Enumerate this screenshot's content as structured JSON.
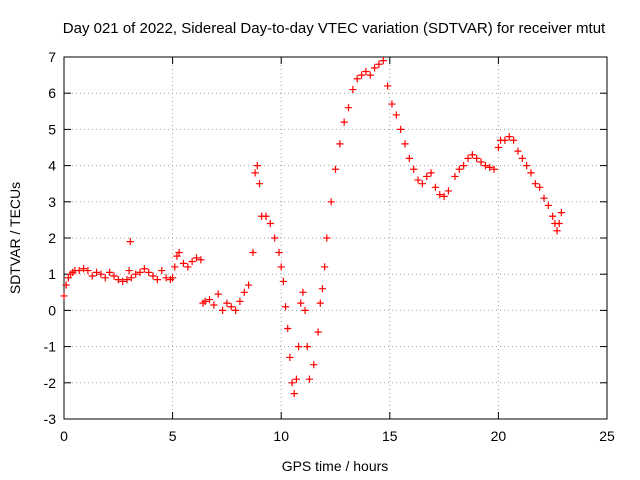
{
  "chart_data": {
    "type": "scatter",
    "title": "Day 021 of 2022, Sidereal Day-to-day VTEC variation (SDTVAR) for receiver mtut",
    "xlabel": "GPS time / hours",
    "ylabel": "SDTVAR / TECUs",
    "xlim": [
      0,
      25
    ],
    "ylim": [
      -3,
      7
    ],
    "xticks": [
      0,
      5,
      10,
      15,
      20,
      25
    ],
    "yticks": [
      -3,
      -2,
      -1,
      0,
      1,
      2,
      3,
      4,
      5,
      6,
      7
    ],
    "xtick_labels": [
      "0",
      "5",
      "10",
      "15",
      "20",
      "25"
    ],
    "ytick_labels": [
      "-3",
      "-2",
      "-1",
      "0",
      "1",
      "2",
      "3",
      "4",
      "5",
      "6",
      "7"
    ],
    "grid": true,
    "marker": "plus",
    "color": "#ff0000",
    "series": [
      {
        "name": "mtut",
        "x": [
          0.0,
          0.1,
          0.2,
          0.3,
          0.4,
          0.5,
          0.7,
          0.9,
          1.1,
          1.3,
          1.5,
          1.7,
          1.9,
          2.1,
          2.3,
          2.5,
          2.7,
          2.9,
          3.0,
          3.05,
          3.1,
          3.3,
          3.5,
          3.7,
          3.9,
          4.1,
          4.3,
          4.5,
          4.7,
          4.9,
          5.0,
          5.1,
          5.2,
          5.3,
          5.5,
          5.7,
          5.9,
          6.1,
          6.3,
          6.4,
          6.5,
          6.7,
          6.9,
          7.1,
          7.3,
          7.5,
          7.7,
          7.9,
          8.1,
          8.3,
          8.5,
          8.7,
          8.8,
          8.9,
          9.0,
          9.1,
          9.3,
          9.5,
          9.7,
          9.9,
          10.0,
          10.1,
          10.2,
          10.3,
          10.4,
          10.5,
          10.6,
          10.7,
          10.8,
          10.9,
          11.0,
          11.1,
          11.2,
          11.3,
          11.5,
          11.7,
          11.8,
          11.9,
          12.0,
          12.1,
          12.3,
          12.5,
          12.7,
          12.9,
          13.1,
          13.3,
          13.5,
          13.7,
          13.9,
          14.1,
          14.3,
          14.5,
          14.7,
          14.9,
          15.1,
          15.3,
          15.5,
          15.7,
          15.9,
          16.1,
          16.3,
          16.5,
          16.7,
          16.9,
          17.1,
          17.3,
          17.5,
          17.7,
          18.0,
          18.2,
          18.4,
          18.6,
          18.8,
          19.0,
          19.2,
          19.4,
          19.6,
          19.8,
          20.0,
          20.1,
          20.3,
          20.5,
          20.7,
          20.9,
          21.1,
          21.3,
          21.5,
          21.7,
          21.9,
          22.1,
          22.3,
          22.5,
          22.6,
          22.7,
          22.8,
          22.9
        ],
        "y": [
          0.4,
          0.7,
          0.9,
          1.0,
          1.05,
          1.1,
          1.1,
          1.15,
          1.1,
          0.95,
          1.05,
          1.0,
          0.9,
          1.05,
          0.95,
          0.85,
          0.8,
          0.85,
          1.1,
          1.9,
          0.9,
          1.0,
          1.05,
          1.15,
          1.05,
          0.95,
          0.85,
          1.1,
          0.9,
          0.85,
          0.9,
          1.2,
          1.5,
          1.6,
          1.3,
          1.2,
          1.35,
          1.45,
          1.4,
          0.2,
          0.25,
          0.3,
          0.15,
          0.45,
          0.0,
          0.2,
          0.1,
          0.0,
          0.25,
          0.5,
          0.7,
          1.6,
          3.8,
          4.0,
          3.5,
          2.6,
          2.6,
          2.4,
          2.0,
          1.6,
          1.2,
          0.8,
          0.1,
          -0.5,
          -1.3,
          -2.0,
          -2.3,
          -1.9,
          -1.0,
          0.2,
          0.5,
          0.0,
          -1.0,
          -1.9,
          -1.5,
          -0.6,
          0.2,
          0.6,
          1.2,
          2.0,
          3.0,
          3.9,
          4.6,
          5.2,
          5.6,
          6.1,
          6.4,
          6.5,
          6.6,
          6.5,
          6.7,
          6.8,
          6.9,
          6.2,
          5.7,
          5.4,
          5.0,
          4.6,
          4.2,
          3.9,
          3.6,
          3.5,
          3.7,
          3.8,
          3.4,
          3.2,
          3.15,
          3.3,
          3.7,
          3.9,
          4.0,
          4.2,
          4.3,
          4.2,
          4.1,
          4.0,
          3.95,
          3.9,
          4.5,
          4.7,
          4.7,
          4.8,
          4.7,
          4.4,
          4.2,
          4.0,
          3.8,
          3.5,
          3.4,
          3.1,
          2.9,
          2.6,
          2.4,
          2.2,
          2.4,
          2.7
        ]
      }
    ]
  }
}
